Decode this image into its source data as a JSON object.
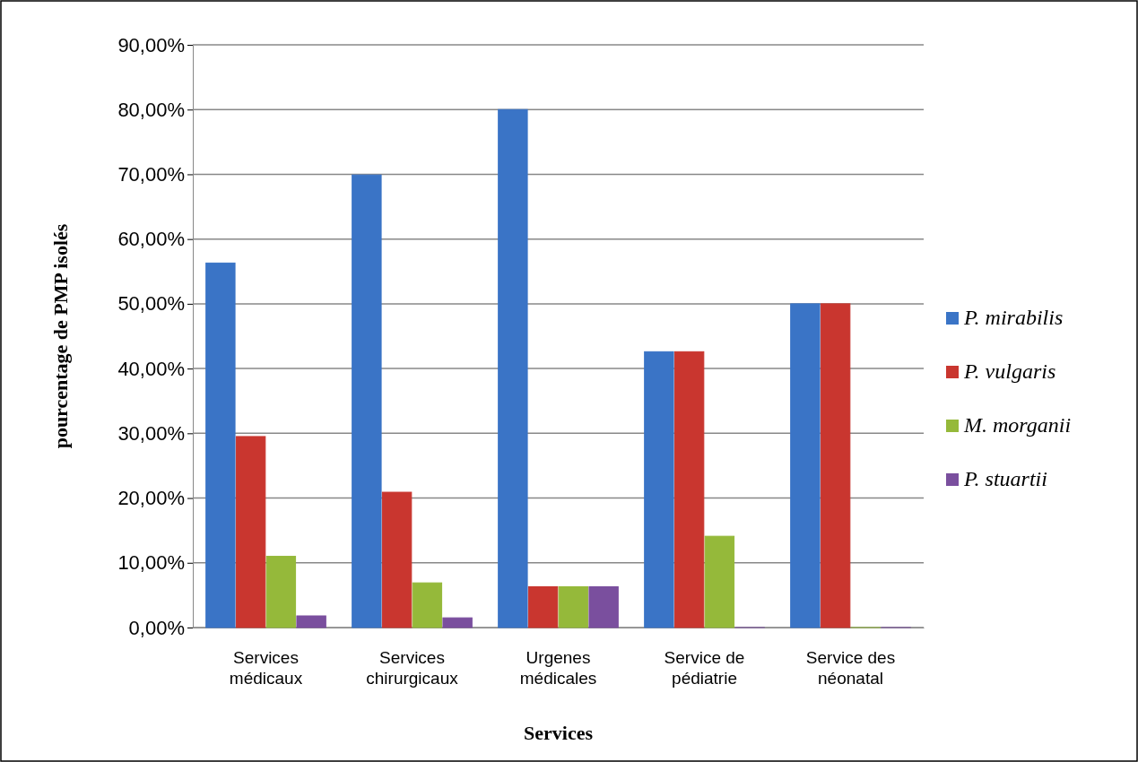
{
  "chart_data": {
    "type": "bar",
    "xlabel": "Services",
    "ylabel": "pourcentage de PMP isolés",
    "categories": [
      "Services médicaux",
      "Services chirurgicaux",
      "Urgenes médicales",
      "Service de pédiatrie",
      "Service des néonatal"
    ],
    "series": [
      {
        "name": "P. mirabilis",
        "color": "#3a74c6",
        "values": [
          56.3,
          69.9,
          80,
          42.6,
          50
        ]
      },
      {
        "name": "P. vulgaris",
        "color": "#c9362f",
        "values": [
          29.5,
          20.9,
          6.3,
          42.6,
          50
        ]
      },
      {
        "name": "M. morganii",
        "color": "#95b93a",
        "values": [
          11,
          6.9,
          6.3,
          14.1,
          0
        ]
      },
      {
        "name": "P. stuartii",
        "color": "#7a4f9e",
        "values": [
          1.8,
          1.5,
          6.3,
          0,
          0
        ]
      }
    ],
    "ylim": [
      0,
      90
    ],
    "yticks": [
      {
        "value": 0,
        "label": "0,00%"
      },
      {
        "value": 10,
        "label": "10,00%"
      },
      {
        "value": 20,
        "label": "20,00%"
      },
      {
        "value": 30,
        "label": "30,00%"
      },
      {
        "value": 40,
        "label": "40,00%"
      },
      {
        "value": 50,
        "label": "50,00%"
      },
      {
        "value": 60,
        "label": "60,00%"
      },
      {
        "value": 70,
        "label": "70,00%"
      },
      {
        "value": 80,
        "label": "80,00%"
      },
      {
        "value": 90,
        "label": "90,00%"
      }
    ],
    "grid": "y",
    "legend": "right"
  }
}
